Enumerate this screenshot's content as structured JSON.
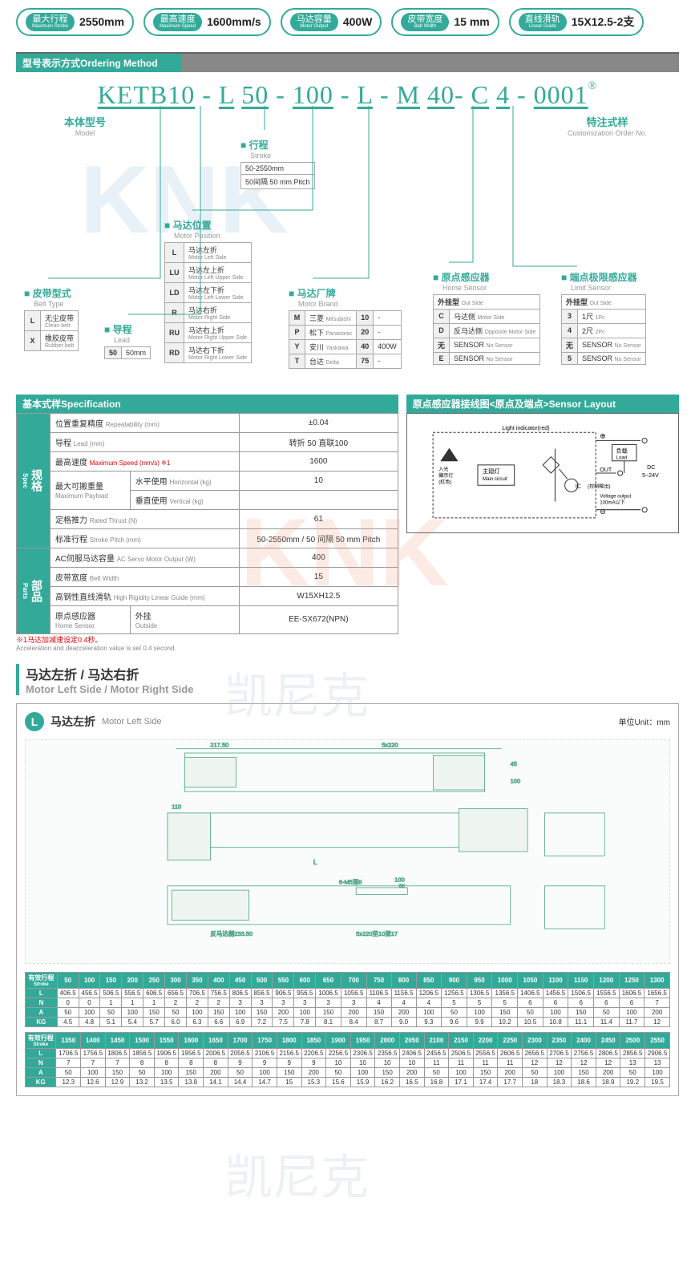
{
  "pills": [
    {
      "label_cn": "最大行程",
      "label_en": "Maximum Stroke",
      "value": "2550mm"
    },
    {
      "label_cn": "最高速度",
      "label_en": "Maximum Speed",
      "value": "1600mm/s"
    },
    {
      "label_cn": "马达容量",
      "label_en": "Motor Output",
      "value": "400W"
    },
    {
      "label_cn": "皮带宽度",
      "label_en": "Belt Width",
      "value": "15 mm"
    },
    {
      "label_cn": "直线滑轨",
      "label_en": "Linear Guide",
      "value": "15X12.5-2支"
    }
  ],
  "ordering_hdr": {
    "cn": "型号表示方式",
    "en": "Ordering Method"
  },
  "order_code": "KETB10 - L 50 - 100 - L - M 40- C 4 - 0001",
  "labels": {
    "model": {
      "cn": "本体型号",
      "en": "Model"
    },
    "custom": {
      "cn": "特注式样",
      "en": "Customization Order No."
    }
  },
  "boxes": {
    "stroke": {
      "cn": "行程",
      "en": "Stroke",
      "rows": [
        [
          "50-2550mm"
        ],
        [
          "50间隔 50 mm Pitch"
        ]
      ]
    },
    "motor_pos": {
      "cn": "马达位置",
      "en": "Motor Position",
      "rows": [
        [
          "L",
          "马达左折",
          "Motor Left Side"
        ],
        [
          "LU",
          "马达左上折",
          "Motor Left Upper Side"
        ],
        [
          "LD",
          "马达左下折",
          "Motor Left Lower Side"
        ],
        [
          "R",
          "马达右折",
          "Motor Right Side"
        ],
        [
          "RU",
          "马达右上折",
          "Motor Right Upper Side"
        ],
        [
          "RD",
          "马达右下折",
          "Motor Right Lower Side"
        ]
      ]
    },
    "belt": {
      "cn": "皮带型式",
      "en": "Belt Type",
      "rows": [
        [
          "L",
          "无尘皮带",
          "Clean belt"
        ],
        [
          "X",
          "橡胶皮带",
          "Rubber belt"
        ]
      ]
    },
    "lead": {
      "cn": "导程",
      "en": "Lead",
      "rows": [
        [
          "50",
          "50mm"
        ]
      ]
    },
    "brand": {
      "cn": "马达厂牌",
      "en": "Motor Brand",
      "rows": [
        [
          "M",
          "三菱",
          "Mitsubishi",
          "10",
          "-"
        ],
        [
          "P",
          "松下",
          "Panasonic",
          "20",
          "-"
        ],
        [
          "Y",
          "安川",
          "Yaskawa",
          "40",
          "400W"
        ],
        [
          "T",
          "台达",
          "Delta",
          "75",
          "-"
        ]
      ]
    },
    "home": {
      "cn": "原点感应器",
      "en": "Home Sensor",
      "hdr": [
        "外挂型",
        "Out Side"
      ],
      "rows": [
        [
          "C",
          "马达侧",
          "Motor Side"
        ],
        [
          "D",
          "反马达侧",
          "Opposite Motor Side"
        ],
        [
          "无",
          "SENSOR",
          "No Sensor"
        ],
        [
          "E",
          "SENSOR",
          "No Sensor"
        ]
      ]
    },
    "limit": {
      "cn": "端点极限感应器",
      "en": "Limit Sensor",
      "hdr": [
        "外挂型",
        "Out Side"
      ],
      "rows": [
        [
          "3",
          "1尺",
          "1Pc"
        ],
        [
          "4",
          "2尺",
          "2Pc"
        ],
        [
          "无",
          "SENSOR",
          "No Sensor"
        ],
        [
          "5",
          "SENSOR",
          "No Sensor"
        ]
      ]
    }
  },
  "spec_hdr": {
    "cn": "基本式样",
    "en": "Specification"
  },
  "sensor_hdr": {
    "cn": "原点感应器接线图<原点及端点>",
    "en": "Sensor Layout"
  },
  "spec_rows": {
    "side1": {
      "cn": "规格",
      "en": "Spec"
    },
    "side2": {
      "cn": "部品",
      "en": "Parts"
    },
    "rows1": [
      {
        "lbl_cn": "位置重复精度",
        "lbl_en": "Repeatability (mm)",
        "val": "±0.04"
      },
      {
        "lbl_cn": "导程",
        "lbl_en": "Lead (mm)",
        "val": "转折 50 直联100"
      },
      {
        "lbl_cn": "最高速度",
        "lbl_en": "Maximum Speed (mm/s) ※1",
        "val": "1600"
      },
      {
        "lbl_cn": "最大可搬重量",
        "lbl_en": "Maximum Payload",
        "sub1_cn": "水平使用",
        "sub1_en": "Horizontal (kg)",
        "val1": "10",
        "sub2_cn": "垂直使用",
        "sub2_en": "Vertical (kg)",
        "val2": ""
      },
      {
        "lbl_cn": "定格推力",
        "lbl_en": "Rated Thrust (N)",
        "val": "61"
      },
      {
        "lbl_cn": "标准行程",
        "lbl_en": "Stroke Pitch (mm)",
        "val": "50-2550mm / 50 间隔 50 mm Pitch"
      }
    ],
    "rows2": [
      {
        "lbl_cn": "AC伺服马达容量",
        "lbl_en": "AC Servo Motor Output (W)",
        "val": "400"
      },
      {
        "lbl_cn": "皮带宽度",
        "lbl_en": "Belt Width",
        "val": "15"
      },
      {
        "lbl_cn": "高钢性直线滑轨",
        "lbl_en": "High Rigidity Linear Guide (mm)",
        "val": "W15XH12.5"
      },
      {
        "lbl_cn": "原点感应器",
        "lbl_en": "Home Sensor",
        "sub_cn": "外挂",
        "sub_en": "Outside",
        "val": "EE-SX672(NPN)"
      }
    ]
  },
  "note1_cn": "※1马达加减速设定0.4秒。",
  "note1_en": "Acceleration and deacceleration value is set 0.4 second.",
  "motor_section": {
    "cn": "马达左折 / 马达右折",
    "en": "Motor Left Side / Motor Right Side"
  },
  "drawing": {
    "circle": "L",
    "cn": "马达左折",
    "en": "Motor Left Side",
    "unit": "单位Unit：mm"
  },
  "sensor_labels": {
    "light": "Light indicator(red)",
    "led_cn": "入光\n顯示灯\n(紅色)",
    "main_cn": "主廻灯",
    "main_en": "Main circuit",
    "load_cn": "负载",
    "load_en": "Load",
    "out": "OUT",
    "ic": "IC",
    "ctrl": "(控制輸出)",
    "volt": "Voltage output\n100mA以下",
    "dc": "DC\n5~24V",
    "plus": "⊕",
    "minus": "⊖"
  },
  "dim_hdr1": {
    "cn": "有效行程",
    "en": "Stroke"
  },
  "dim_cols1": [
    "50",
    "100",
    "150",
    "200",
    "250",
    "300",
    "350",
    "400",
    "450",
    "500",
    "550",
    "600",
    "650",
    "700",
    "750",
    "800",
    "850",
    "900",
    "950",
    "1000",
    "1050",
    "1100",
    "1150",
    "1200",
    "1250",
    "1300"
  ],
  "dim_data1": {
    "L": [
      "406.5",
      "456.5",
      "506.5",
      "556.5",
      "606.5",
      "656.5",
      "706.5",
      "756.5",
      "806.5",
      "856.5",
      "906.5",
      "956.5",
      "1006.5",
      "1056.5",
      "1106.5",
      "1156.5",
      "1206.5",
      "1256.5",
      "1306.5",
      "1356.5",
      "1406.5",
      "1456.5",
      "1506.5",
      "1556.5",
      "1606.5",
      "1656.5"
    ],
    "N": [
      "0",
      "0",
      "1",
      "1",
      "1",
      "2",
      "2",
      "2",
      "3",
      "3",
      "3",
      "3",
      "3",
      "3",
      "4",
      "4",
      "4",
      "5",
      "5",
      "5",
      "6",
      "6",
      "6",
      "6",
      "6",
      "7"
    ],
    "A": [
      "50",
      "100",
      "50",
      "100",
      "150",
      "50",
      "100",
      "150",
      "100",
      "150",
      "200",
      "100",
      "150",
      "200",
      "150",
      "200",
      "100",
      "50",
      "100",
      "150",
      "50",
      "100",
      "150",
      "50",
      "100",
      "200"
    ],
    "KG": [
      "4.5",
      "4.8",
      "5.1",
      "5.4",
      "5.7",
      "6.0",
      "6.3",
      "6.6",
      "6.9",
      "7.2",
      "7.5",
      "7.8",
      "8.1",
      "8.4",
      "8.7",
      "9.0",
      "9.3",
      "9.6",
      "9.9",
      "10.2",
      "10.5",
      "10.8",
      "11.1",
      "11.4",
      "11.7",
      "12"
    ]
  },
  "dim_cols2": [
    "1350",
    "1400",
    "1450",
    "1500",
    "1550",
    "1600",
    "1650",
    "1700",
    "1750",
    "1800",
    "1850",
    "1900",
    "1950",
    "2000",
    "2050",
    "2100",
    "2150",
    "2200",
    "2250",
    "2300",
    "2350",
    "2400",
    "2450",
    "2500",
    "2550"
  ],
  "dim_data2": {
    "L": [
      "1706.5",
      "1756.5",
      "1806.5",
      "1856.5",
      "1906.5",
      "1956.5",
      "2006.5",
      "2056.5",
      "2106.5",
      "2156.5",
      "2206.5",
      "2256.5",
      "2306.5",
      "2356.5",
      "2406.5",
      "2456.5",
      "2506.5",
      "2556.5",
      "2606.5",
      "2656.5",
      "2706.5",
      "2756.5",
      "2806.5",
      "2856.5",
      "2906.5"
    ],
    "N": [
      "7",
      "7",
      "7",
      "8",
      "8",
      "8",
      "8",
      "9",
      "9",
      "9",
      "9",
      "10",
      "10",
      "10",
      "10",
      "11",
      "11",
      "11",
      "11",
      "12",
      "12",
      "12",
      "12",
      "13",
      "13"
    ],
    "A": [
      "50",
      "100",
      "150",
      "50",
      "100",
      "150",
      "200",
      "50",
      "100",
      "150",
      "200",
      "50",
      "100",
      "150",
      "200",
      "50",
      "100",
      "150",
      "200",
      "50",
      "100",
      "150",
      "200",
      "50",
      "100"
    ],
    "KG": [
      "12.3",
      "12.6",
      "12.9",
      "13.2",
      "13.5",
      "13.8",
      "14.1",
      "14.4",
      "14.7",
      "15",
      "15.3",
      "15.6",
      "15.9",
      "16.2",
      "16.5",
      "16.8",
      "17.1",
      "17.4",
      "17.7",
      "18",
      "18.3",
      "18.6",
      "18.9",
      "19.2",
      "19.5"
    ]
  }
}
